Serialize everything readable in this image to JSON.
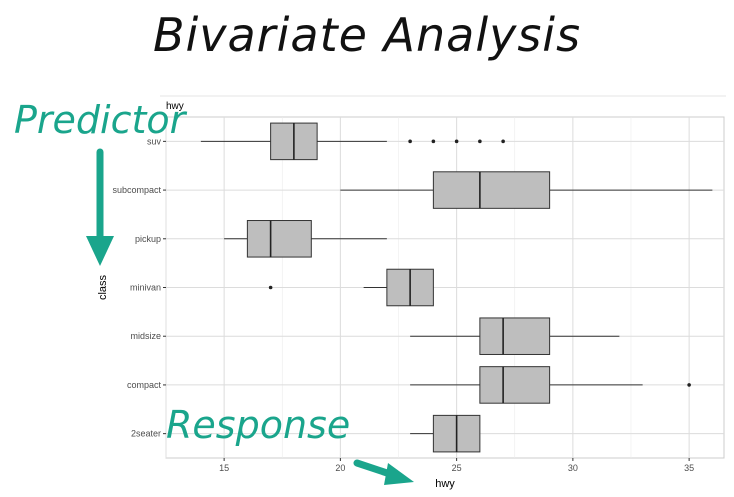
{
  "slide": {
    "title": "Bivariate Analysis"
  },
  "annotations": {
    "predictor": "Predictor",
    "response": "Response",
    "accent_color": "#1aa58c"
  },
  "clipped_label": "hwy",
  "chart_data": {
    "type": "boxplot",
    "orientation": "horizontal",
    "title": "",
    "xlabel": "hwy",
    "ylabel": "class",
    "xlim": [
      12.5,
      36.5
    ],
    "xticks": [
      15,
      20,
      25,
      30,
      35
    ],
    "grid": true,
    "box_fill": "#bebebe",
    "categories": [
      "suv",
      "subcompact",
      "pickup",
      "minivan",
      "midsize",
      "compact",
      "2seater"
    ],
    "boxes": [
      {
        "category": "suv",
        "whisker_low": 14,
        "q1": 17,
        "median": 18,
        "q3": 19,
        "whisker_high": 22,
        "outliers": [
          23,
          24,
          25,
          26,
          27
        ]
      },
      {
        "category": "subcompact",
        "whisker_low": 20,
        "q1": 24,
        "median": 26,
        "q3": 29,
        "whisker_high": 36,
        "outliers": []
      },
      {
        "category": "pickup",
        "whisker_low": 15,
        "q1": 16,
        "median": 17,
        "q3": 18.75,
        "whisker_high": 22,
        "outliers": []
      },
      {
        "category": "minivan",
        "whisker_low": 21,
        "q1": 22,
        "median": 23,
        "q3": 24,
        "whisker_high": 24,
        "outliers": [
          17
        ]
      },
      {
        "category": "midsize",
        "whisker_low": 23,
        "q1": 26,
        "median": 27,
        "q3": 29,
        "whisker_high": 32,
        "outliers": []
      },
      {
        "category": "compact",
        "whisker_low": 23,
        "q1": 26,
        "median": 27,
        "q3": 29,
        "whisker_high": 33,
        "outliers": [
          35
        ]
      },
      {
        "category": "2seater",
        "whisker_low": 23,
        "q1": 24,
        "median": 25,
        "q3": 26,
        "whisker_high": 26,
        "outliers": []
      }
    ]
  }
}
